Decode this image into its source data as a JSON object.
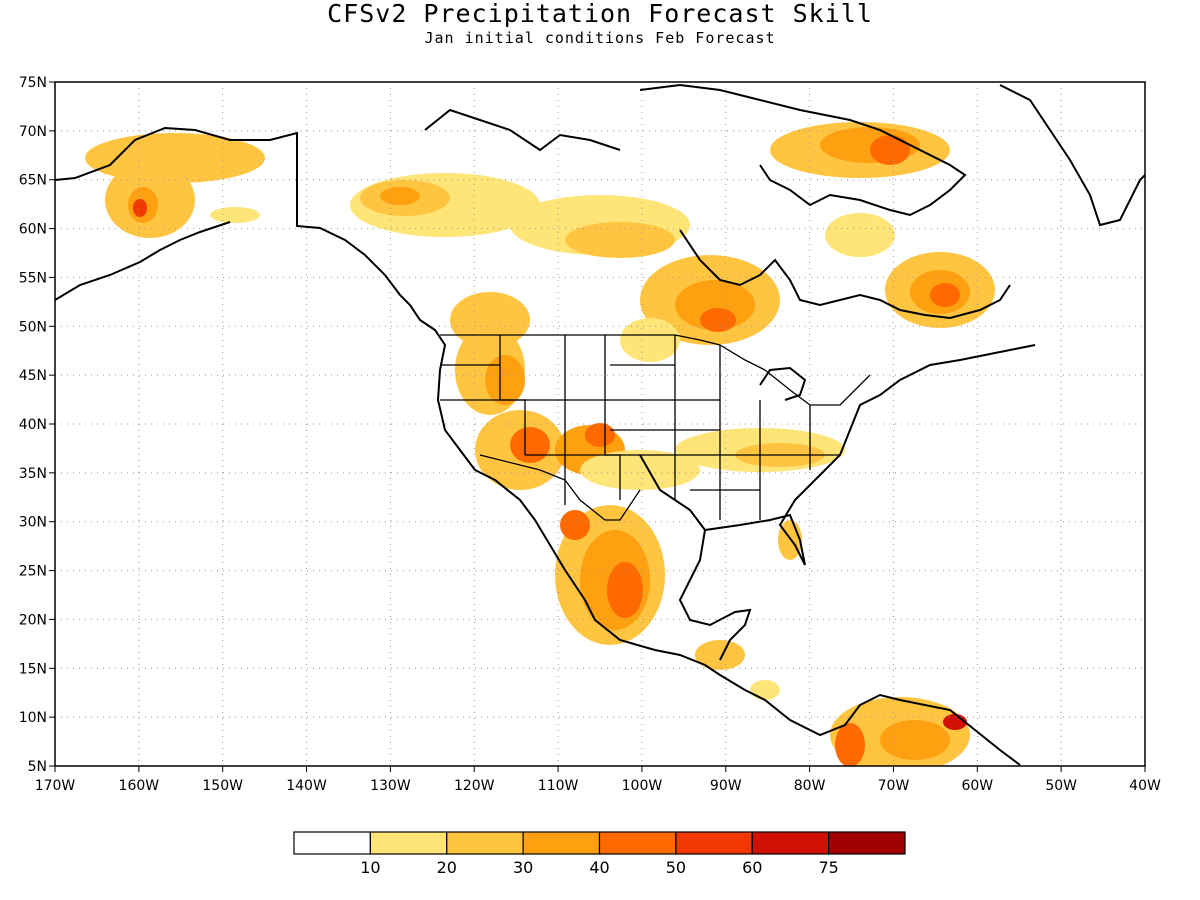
{
  "title": "CFSv2 Precipitation Forecast Skill",
  "subtitle": "Jan initial conditions  Feb Forecast",
  "axes": {
    "lon_labels": [
      "170W",
      "160W",
      "150W",
      "140W",
      "130W",
      "120W",
      "110W",
      "100W",
      "90W",
      "80W",
      "70W",
      "60W",
      "50W",
      "40W"
    ],
    "lat_labels": [
      "75N",
      "70N",
      "65N",
      "60N",
      "55N",
      "50N",
      "45N",
      "40N",
      "35N",
      "30N",
      "25N",
      "20N",
      "15N",
      "10N",
      "5N"
    ],
    "lon_range": [
      -170,
      -40
    ],
    "lat_range": [
      5,
      75
    ],
    "grid": "dotted"
  },
  "legend": {
    "labels": [
      "10",
      "20",
      "30",
      "40",
      "50",
      "60",
      "75"
    ],
    "colors": [
      "#ffffff",
      "#ffe478",
      "#ffc440",
      "#ffa010",
      "#ff6a00",
      "#f03800",
      "#d01000",
      "#a00000"
    ]
  },
  "map_features": [
    "coastlines",
    "country-borders",
    "us-state-borders"
  ]
}
